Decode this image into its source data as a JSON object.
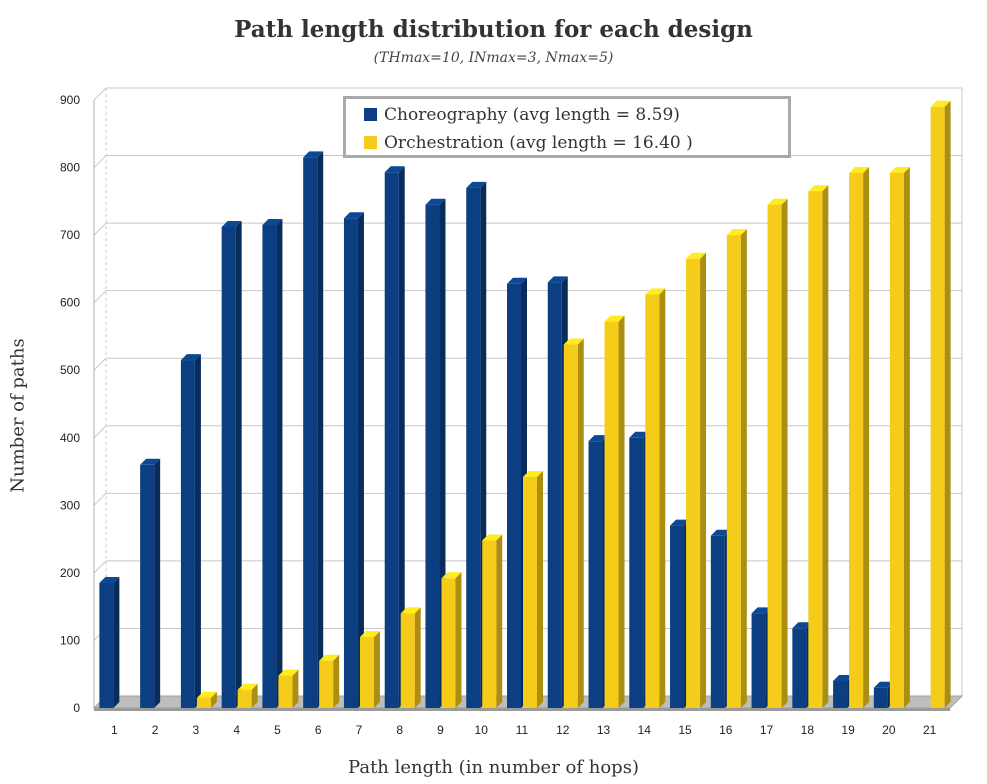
{
  "chart_data": {
    "type": "bar",
    "title": "Path length distribution for each design",
    "subtitle": "(THmax=10, INmax=3, Nmax=5)",
    "xlabel": "Path length (in number of hops)",
    "ylabel": "Number of paths",
    "ylim": [
      0,
      900
    ],
    "yticks": [
      "0",
      "100",
      "200",
      "300",
      "400",
      "500",
      "600",
      "700",
      "800",
      "900"
    ],
    "categories": [
      "1",
      "2",
      "3",
      "4",
      "5",
      "6",
      "7",
      "8",
      "9",
      "10",
      "11",
      "12",
      "13",
      "14",
      "15",
      "16",
      "17",
      "18",
      "19",
      "20",
      "21"
    ],
    "series": [
      {
        "name": "Choreography (avg length = 8.59)",
        "color": "#0b3f82",
        "values": [
          185,
          360,
          515,
          712,
          715,
          815,
          725,
          793,
          745,
          770,
          628,
          630,
          395,
          400,
          270,
          255,
          140,
          118,
          40,
          30,
          0
        ]
      },
      {
        "name": "Orchestration (avg length = 16.40 )",
        "color": "#f5cc1a",
        "values": [
          0,
          0,
          15,
          27,
          48,
          70,
          105,
          140,
          192,
          248,
          342,
          538,
          572,
          612,
          665,
          700,
          745,
          765,
          792,
          792,
          890
        ]
      }
    ],
    "grid": true,
    "legend_position": "top-center"
  }
}
